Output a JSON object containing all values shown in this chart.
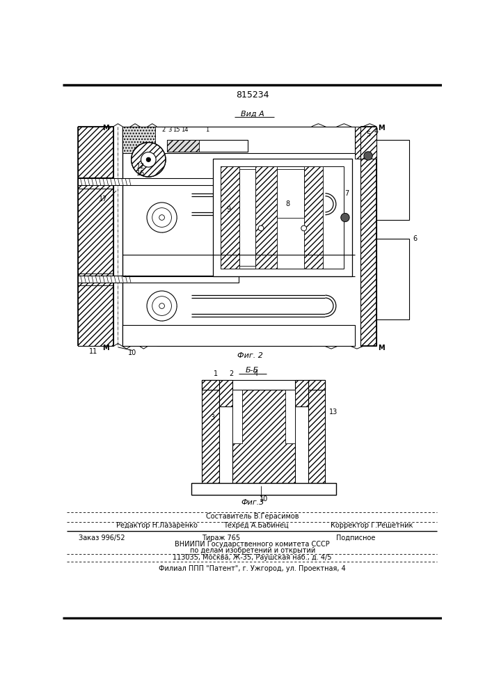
{
  "title_number": "815234",
  "view_label_top": "Вид А",
  "fig2_label": "Фиг. 2",
  "section_label": "Б-Б",
  "fig3_label": "Фиг.3",
  "footer_line1_center": "Составитель В.Герасимов",
  "footer_line2_left": "Редактор Н.Лазаренко",
  "footer_line2_center": "Техред А.Бабинец",
  "footer_line2_right": "Корректор Г.Решетник",
  "footer_line3_left": "Заказ 996/52",
  "footer_line3_center": "Тираж 765",
  "footer_line3_right": "Подписное",
  "footer_line4": "ВНИИПИ Государственного комитета СССР",
  "footer_line5": "по делам изобретений и открытий",
  "footer_line6": "113035, Москва, Ж-35, Раушская наб., д. 4/5",
  "footer_line7": "Филиал ППП \"Патент\", г. Ужгород, ул. Проектная, 4",
  "bg_color": "#ffffff"
}
